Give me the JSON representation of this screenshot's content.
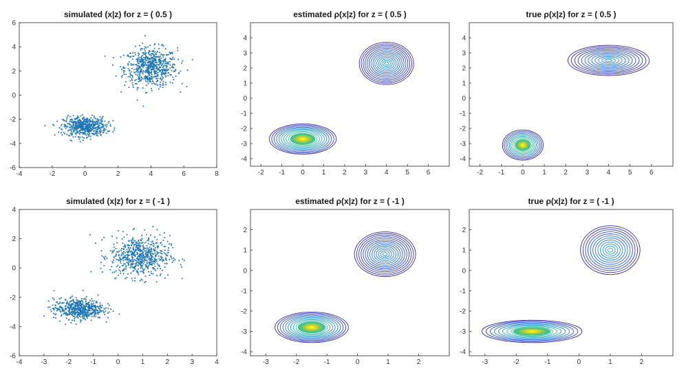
{
  "chart_data": [
    {
      "type": "scatter",
      "title": "simulated (x|z) for z = ( 0.5 )",
      "xlim": [
        -4,
        8
      ],
      "ylim": [
        -6,
        6
      ],
      "xticks": [
        -4,
        -2,
        0,
        2,
        4,
        6,
        8
      ],
      "yticks": [
        -6,
        -4,
        -2,
        0,
        2,
        4,
        6
      ],
      "clusters": [
        {
          "center": [
            4.0,
            2.3
          ],
          "spread": [
            0.8,
            0.8
          ],
          "count": 650
        },
        {
          "center": [
            0.0,
            -2.6
          ],
          "spread": [
            0.65,
            0.4
          ],
          "count": 560
        }
      ],
      "color": "#1f77b4"
    },
    {
      "type": "contour",
      "title": "estimated ρ(x|z) for z = ( 0.5 )",
      "xlim": [
        -2.5,
        7
      ],
      "ylim": [
        -4.5,
        5
      ],
      "xticks": [
        -2,
        -1,
        0,
        1,
        2,
        3,
        4,
        5,
        6
      ],
      "yticks": [
        -4,
        -3,
        -2,
        -1,
        0,
        1,
        2,
        3,
        4
      ],
      "modes": [
        {
          "center": [
            4.0,
            2.3
          ],
          "radii": [
            1.3,
            1.4
          ],
          "levels": 14,
          "peak": 0.4
        },
        {
          "center": [
            0.0,
            -2.7
          ],
          "radii": [
            1.6,
            1.0
          ],
          "levels": 14,
          "peak": 1.0
        }
      ]
    },
    {
      "type": "contour",
      "title": "true ρ(x|z) for z = ( 0.5 )",
      "xlim": [
        -2.5,
        7
      ],
      "ylim": [
        -4.5,
        5
      ],
      "xticks": [
        -2,
        -1,
        0,
        1,
        2,
        3,
        4,
        5,
        6
      ],
      "yticks": [
        -4,
        -3,
        -2,
        -1,
        0,
        1,
        2,
        3,
        4
      ],
      "modes": [
        {
          "center": [
            4.0,
            2.5
          ],
          "radii": [
            1.9,
            1.0
          ],
          "levels": 12,
          "peak": 0.35
        },
        {
          "center": [
            0.0,
            -3.1
          ],
          "radii": [
            0.95,
            1.0
          ],
          "levels": 12,
          "peak": 1.0
        }
      ]
    },
    {
      "type": "scatter",
      "title": "simulated (x|z) for z = ( -1 )",
      "xlim": [
        -4,
        4
      ],
      "ylim": [
        -6,
        4
      ],
      "xticks": [
        -4,
        -3,
        -2,
        -1,
        0,
        1,
        2,
        3,
        4
      ],
      "yticks": [
        -6,
        -4,
        -2,
        0,
        2,
        4
      ],
      "clusters": [
        {
          "center": [
            0.9,
            0.8
          ],
          "spread": [
            0.6,
            0.7
          ],
          "count": 650
        },
        {
          "center": [
            -1.6,
            -2.8
          ],
          "spread": [
            0.5,
            0.35
          ],
          "count": 560
        }
      ],
      "color": "#1f77b4"
    },
    {
      "type": "contour",
      "title": "estimated ρ(x|z) for z = ( -1 )",
      "xlim": [
        -3.5,
        3
      ],
      "ylim": [
        -4.2,
        3
      ],
      "xticks": [
        -3,
        -2,
        -1,
        0,
        1,
        2
      ],
      "yticks": [
        -4,
        -3,
        -2,
        -1,
        0,
        1,
        2
      ],
      "modes": [
        {
          "center": [
            0.9,
            0.8
          ],
          "radii": [
            1.0,
            1.1
          ],
          "levels": 14,
          "peak": 0.35
        },
        {
          "center": [
            -1.5,
            -2.8
          ],
          "radii": [
            1.2,
            0.75
          ],
          "levels": 14,
          "peak": 0.9
        }
      ]
    },
    {
      "type": "contour",
      "title": "true ρ(x|z) for z = ( -1 )",
      "xlim": [
        -3.5,
        3
      ],
      "ylim": [
        -4.2,
        3
      ],
      "xticks": [
        -3,
        -2,
        -1,
        0,
        1,
        2
      ],
      "yticks": [
        -4,
        -3,
        -2,
        -1,
        0,
        1,
        2
      ],
      "modes": [
        {
          "center": [
            1.0,
            1.0
          ],
          "radii": [
            0.95,
            1.2
          ],
          "levels": 12,
          "peak": 0.45
        },
        {
          "center": [
            -1.5,
            -3.0
          ],
          "radii": [
            1.6,
            0.55
          ],
          "levels": 12,
          "peak": 0.9
        }
      ]
    }
  ]
}
